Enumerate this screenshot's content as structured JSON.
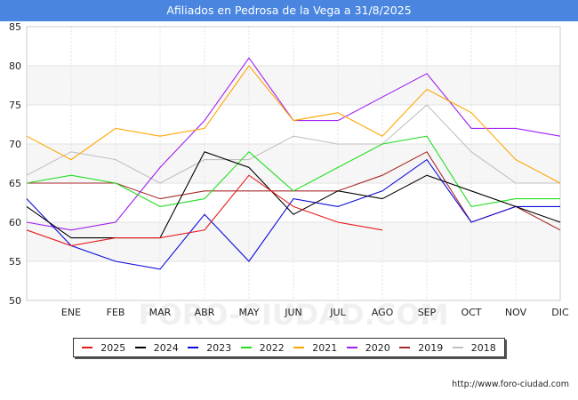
{
  "header": {
    "title": "Afiliados en Pedrosa de la Vega a 31/8/2025"
  },
  "footer": {
    "source": "http://www.foro-ciudad.com"
  },
  "watermark": "FORO-CIUDAD.COM",
  "chart_data": {
    "type": "line",
    "title": "Afiliados en Pedrosa de la Vega a 31/8/2025",
    "xlabel": "",
    "ylabel": "",
    "categories": [
      "",
      "ENE",
      "FEB",
      "MAR",
      "ABR",
      "MAY",
      "JUN",
      "JUL",
      "AGO",
      "SEP",
      "OCT",
      "NOV",
      "DIC"
    ],
    "ylim": [
      50,
      85
    ],
    "yticks": [
      50,
      55,
      60,
      65,
      70,
      75,
      80,
      85
    ],
    "grid": true,
    "legend_position": "bottom",
    "series": [
      {
        "name": "2025",
        "color": "#e8191a",
        "values": [
          59,
          57,
          58,
          58,
          59,
          66,
          62,
          60,
          59,
          null,
          null,
          null,
          null
        ]
      },
      {
        "name": "2024",
        "color": "#000000",
        "values": [
          62,
          58,
          58,
          58,
          69,
          67,
          61,
          64,
          63,
          66,
          64,
          62,
          60
        ]
      },
      {
        "name": "2023",
        "color": "#0a0adc",
        "values": [
          63,
          57,
          55,
          54,
          61,
          55,
          63,
          62,
          64,
          68,
          60,
          62,
          62
        ]
      },
      {
        "name": "2022",
        "color": "#22dd22",
        "values": [
          65,
          66,
          65,
          62,
          63,
          69,
          64,
          67,
          70,
          71,
          62,
          63,
          63
        ]
      },
      {
        "name": "2021",
        "color": "#ffa500",
        "values": [
          71,
          68,
          72,
          71,
          72,
          80,
          73,
          74,
          71,
          77,
          74,
          68,
          65
        ]
      },
      {
        "name": "2020",
        "color": "#a020f0",
        "values": [
          60,
          59,
          60,
          67,
          73,
          81,
          73,
          73,
          76,
          79,
          72,
          72,
          71
        ]
      },
      {
        "name": "2019",
        "color": "#a52a2a",
        "values": [
          65,
          65,
          65,
          63,
          64,
          64,
          64,
          64,
          66,
          69,
          60,
          62,
          59
        ]
      },
      {
        "name": "2018",
        "color": "#c0c0c0",
        "values": [
          66,
          69,
          68,
          65,
          68,
          68,
          71,
          70,
          70,
          75,
          69,
          65,
          65
        ]
      }
    ]
  }
}
